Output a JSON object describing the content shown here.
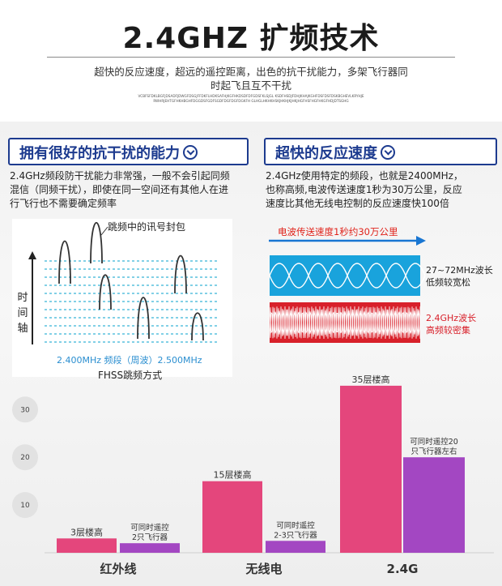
{
  "header": {
    "title": "2.4GHZ 扩频技术",
    "subtitle_line1": "超快的反应速度，超远的遥控距离，出色的抗干扰能力，多架飞行器同",
    "subtitle_line2": "时起飞且互不干扰",
    "fine_print": "VCBFSFDKLBGFJDSADFJDWGFDSGJFFDKFLHDKSAFHJKGFHKDSDFDFGDSFKLSJGL KSDFHSDJFDHJKHAJKGHFDSFDSFDSKBGHEVLKRYHJERWHRJEHTGFHKHBGHFDGGDSFGDFSGDFDGFDGFDGKFH GLHGLHKHKHSKJHKHJKJHKJHGFHSFHGFHKGFHDJDTSGHG",
    "accent_color": "#1d3b8f"
  },
  "left_section": {
    "heading": "拥有很好的抗干扰的能力",
    "heading_icon": "chevron-down-circle-icon",
    "body_line1": "2.4GHz频段防干扰能力非常强，一般不会引起同频",
    "body_line2": "混信（同频干扰），即使在同一空间还有其他人在进",
    "body_line3": "行飞行也不需要确定频率",
    "diagram": {
      "packet_label": "跳频中的讯号封包",
      "y_axis_label": [
        "时",
        "间",
        "轴"
      ],
      "x_axis_label": "2.400MHz  频段（周波）2.500MHz",
      "caption": "FHSS跳频方式",
      "grid_color": "#37b4d8"
    }
  },
  "right_section": {
    "heading": "超快的反应速度",
    "heading_icon": "chevron-down-circle-icon",
    "body_line1": "2.4GHz使用特定的频段，也就是2400MHz，",
    "body_line2": "也称高频,电波传送速度1秒为30万公里，反应",
    "body_line3": "速度比其他无线电控制的反应速度快100倍",
    "speed_label": "电波传送速度1秒约30万公里",
    "low_wave_label_line1": "27~72MHz波长",
    "low_wave_label_line2": "低频较宽松",
    "high_wave_label_line1": "2.4GHz波长",
    "high_wave_label_line2": "高频较密集",
    "low_wave_color": "#19a3dc",
    "high_wave_color": "#d8202a"
  },
  "chart_data": {
    "type": "bar",
    "categories": [
      "红外线",
      "无线电",
      "2.4G"
    ],
    "yticks": [
      10,
      20,
      30
    ],
    "ylim": [
      0,
      36
    ],
    "series": [
      {
        "color": "#e4467c",
        "values": [
          3,
          15,
          35
        ],
        "labels": [
          "3层楼高",
          "15层楼高",
          "35层楼高"
        ]
      },
      {
        "color": "#a347c2",
        "values": [
          2,
          2.5,
          20
        ],
        "labels": [
          "可同时遥控\n2只飞行器",
          "可同时遥控\n2-3只飞行器",
          "可同时遥控20\n只飞行器左右"
        ]
      }
    ]
  }
}
